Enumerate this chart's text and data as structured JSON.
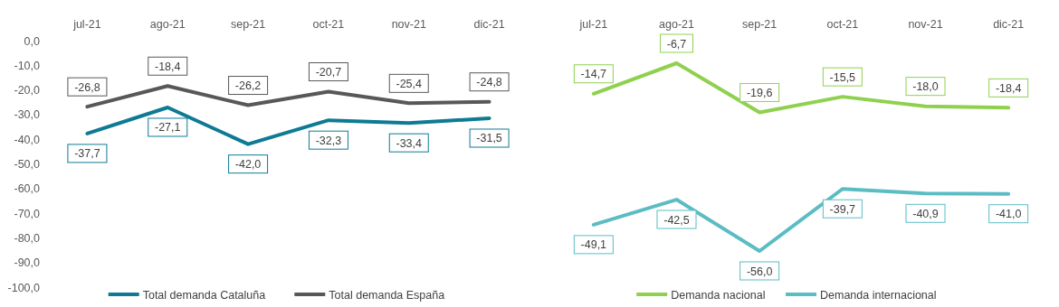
{
  "chart_data": [
    {
      "type": "line",
      "categories": [
        "jul-21",
        "ago-21",
        "sep-21",
        "oct-21",
        "nov-21",
        "dic-21"
      ],
      "ylim": [
        -100,
        0
      ],
      "yticks": [
        {
          "value": 0,
          "label": "0,0"
        },
        {
          "value": -10,
          "label": "-10,0"
        },
        {
          "value": -20,
          "label": "-20,0"
        },
        {
          "value": -30,
          "label": "-30,0"
        },
        {
          "value": -40,
          "label": "-40,0"
        },
        {
          "value": -50,
          "label": "-50,0"
        },
        {
          "value": -60,
          "label": "-60,0"
        },
        {
          "value": -70,
          "label": "-70,0"
        },
        {
          "value": -80,
          "label": "-80,0"
        },
        {
          "value": -90,
          "label": "-90,0"
        },
        {
          "value": -100,
          "label": "-100,0"
        }
      ],
      "legend": "bottom",
      "series": [
        {
          "name": "Total demanda Cataluña",
          "color": "#0e7a94",
          "values": [
            -37.7,
            -27.1,
            -42.0,
            -32.3,
            -33.4,
            -31.5
          ],
          "value_labels": [
            "-37,7",
            "-27,1",
            "-42,0",
            "-32,3",
            "-33,4",
            "-31,5"
          ]
        },
        {
          "name": "Total demanda España",
          "color": "#58585a",
          "values": [
            -26.8,
            -18.4,
            -26.2,
            -20.7,
            -25.4,
            -24.8
          ],
          "value_labels": [
            "-26,8",
            "-18,4",
            "-26,2",
            "-20,7",
            "-25,4",
            "-24,8"
          ]
        }
      ]
    },
    {
      "type": "line",
      "categories": [
        "jul-21",
        "ago-21",
        "sep-21",
        "oct-21",
        "nov-21",
        "dic-21"
      ],
      "tick_labels": "x",
      "legend": "bottom",
      "series": [
        {
          "name": "Demanda nacional",
          "color": "#8fd14f",
          "values": [
            -14.7,
            -6.7,
            -19.6,
            -15.5,
            -18.0,
            -18.4
          ],
          "value_labels": [
            "-14,7",
            "-6,7",
            "-19,6",
            "-15,5",
            "-18,0",
            "-18,4"
          ]
        },
        {
          "name": "Demanda internacional",
          "color": "#5bbcc4",
          "values": [
            -49.1,
            -42.5,
            -56.0,
            -39.7,
            -40.9,
            -41.0
          ],
          "value_labels": [
            "-49,1",
            "-42,5",
            "-56,0",
            "-39,7",
            "-40,9",
            "-41,0"
          ]
        }
      ]
    }
  ]
}
